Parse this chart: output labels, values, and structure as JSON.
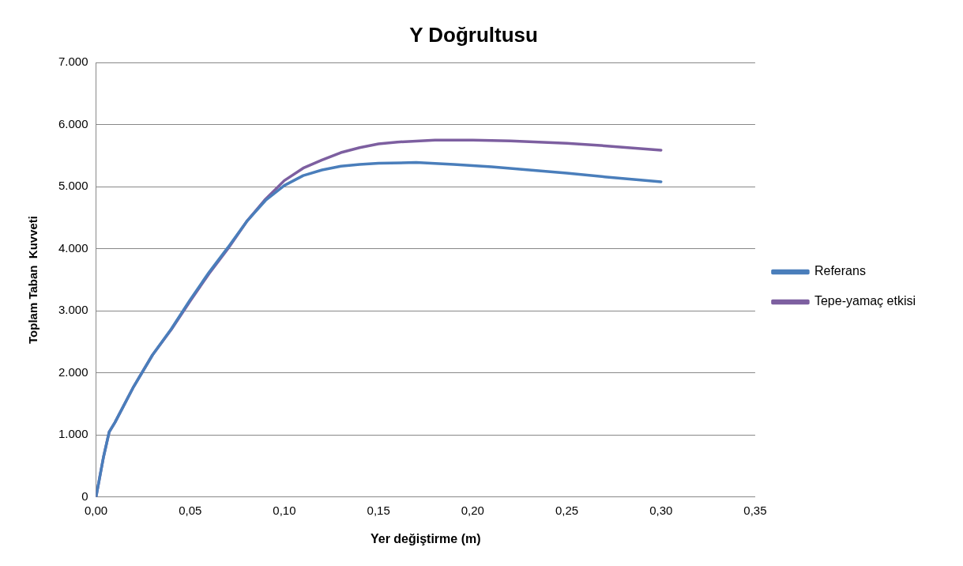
{
  "chart_data": {
    "type": "line",
    "title": "Y Doğrultusu",
    "xlabel": "Yer değiştirme (m)",
    "ylabel": "Toplam Taban  Kuvveti",
    "xlim": [
      0,
      0.35
    ],
    "xticks": [
      {
        "value": 0,
        "label": "0,00"
      },
      {
        "value": 0.05,
        "label": "0,05"
      },
      {
        "value": 0.1,
        "label": "0,10"
      },
      {
        "value": 0.15,
        "label": "0,15"
      },
      {
        "value": 0.2,
        "label": "0,20"
      },
      {
        "value": 0.25,
        "label": "0,25"
      },
      {
        "value": 0.3,
        "label": "0,30"
      },
      {
        "value": 0.35,
        "label": "0,35"
      }
    ],
    "ylim": [
      0,
      7000
    ],
    "yticks": [
      0,
      {
        "value": 1000,
        "label": "1.000"
      },
      {
        "value": 2000,
        "label": "2.000"
      },
      {
        "value": 3000,
        "label": "3.000"
      },
      {
        "value": 4000,
        "label": "4.000"
      },
      {
        "value": 5000,
        "label": "5.000"
      },
      {
        "value": 6000,
        "label": "6.000"
      },
      {
        "value": 7000,
        "label": "7.000"
      }
    ],
    "grid": "y",
    "legend": "right",
    "marker": "none",
    "series": [
      {
        "name": "Referans",
        "color": "#4a7ebb",
        "x": [
          0,
          0.004,
          0.007,
          0.01,
          0.02,
          0.03,
          0.04,
          0.05,
          0.06,
          0.07,
          0.08,
          0.09,
          0.1,
          0.11,
          0.12,
          0.13,
          0.14,
          0.15,
          0.17,
          0.19,
          0.21,
          0.23,
          0.25,
          0.27,
          0.3
        ],
        "values": [
          0,
          650,
          1050,
          1200,
          1780,
          2290,
          2710,
          3180,
          3620,
          4020,
          4440,
          4780,
          5020,
          5180,
          5270,
          5330,
          5360,
          5380,
          5390,
          5360,
          5320,
          5270,
          5220,
          5160,
          5080
        ]
      },
      {
        "name": "Tepe-yamaç etkisi",
        "color": "#7d5fa0",
        "x": [
          0,
          0.004,
          0.007,
          0.01,
          0.02,
          0.03,
          0.04,
          0.05,
          0.06,
          0.07,
          0.08,
          0.09,
          0.1,
          0.11,
          0.12,
          0.13,
          0.14,
          0.15,
          0.16,
          0.18,
          0.2,
          0.22,
          0.25,
          0.27,
          0.3
        ],
        "values": [
          0,
          650,
          1050,
          1200,
          1780,
          2290,
          2700,
          3160,
          3600,
          4000,
          4440,
          4800,
          5100,
          5300,
          5430,
          5550,
          5630,
          5690,
          5720,
          5750,
          5750,
          5740,
          5700,
          5660,
          5590
        ]
      }
    ]
  }
}
